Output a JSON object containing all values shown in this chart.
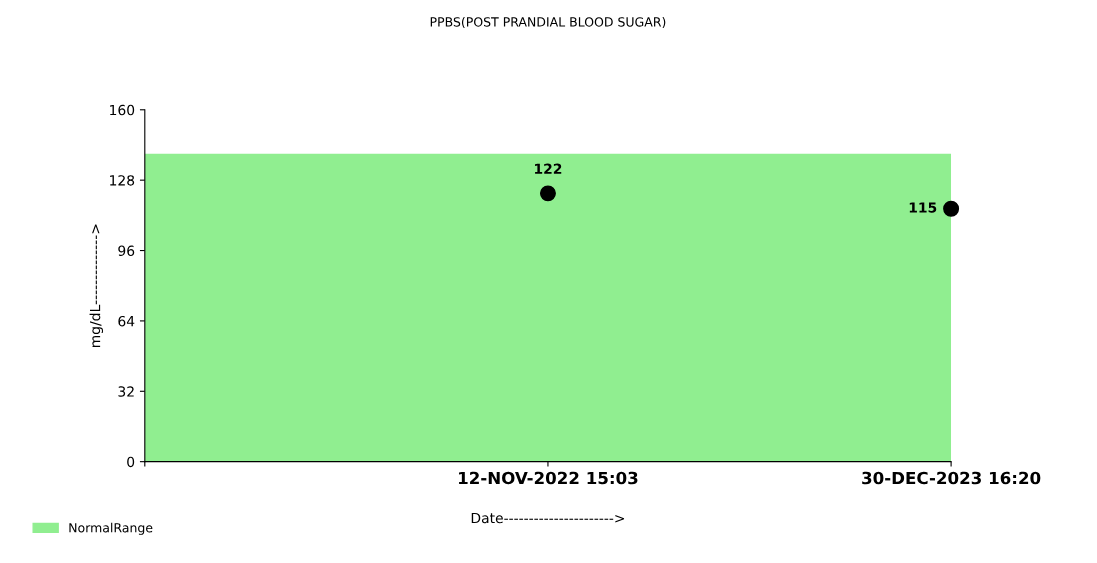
{
  "chart_data": {
    "type": "scatter",
    "title": "PPBS(POST PRANDIAL BLOOD SUGAR)",
    "xlabel": "Date---------------------->",
    "ylabel": "mg/dL-------------->",
    "categories": [
      null,
      "12-NOV-2022 15:03",
      "30-DEC-2023 16:20"
    ],
    "series": [
      {
        "color": "#000000",
        "values": [
          null,
          122,
          115
        ]
      }
    ],
    "data_labels": true,
    "marker": "circle",
    "ylim": [
      0,
      160
    ],
    "yticks": [
      0,
      32,
      64,
      96,
      128,
      160
    ],
    "bands": [
      {
        "axis": "y",
        "from": 0,
        "to": 140,
        "label": "NormalRange",
        "color": "#90ee90"
      }
    ],
    "legend": "bottom left",
    "grid": false
  }
}
